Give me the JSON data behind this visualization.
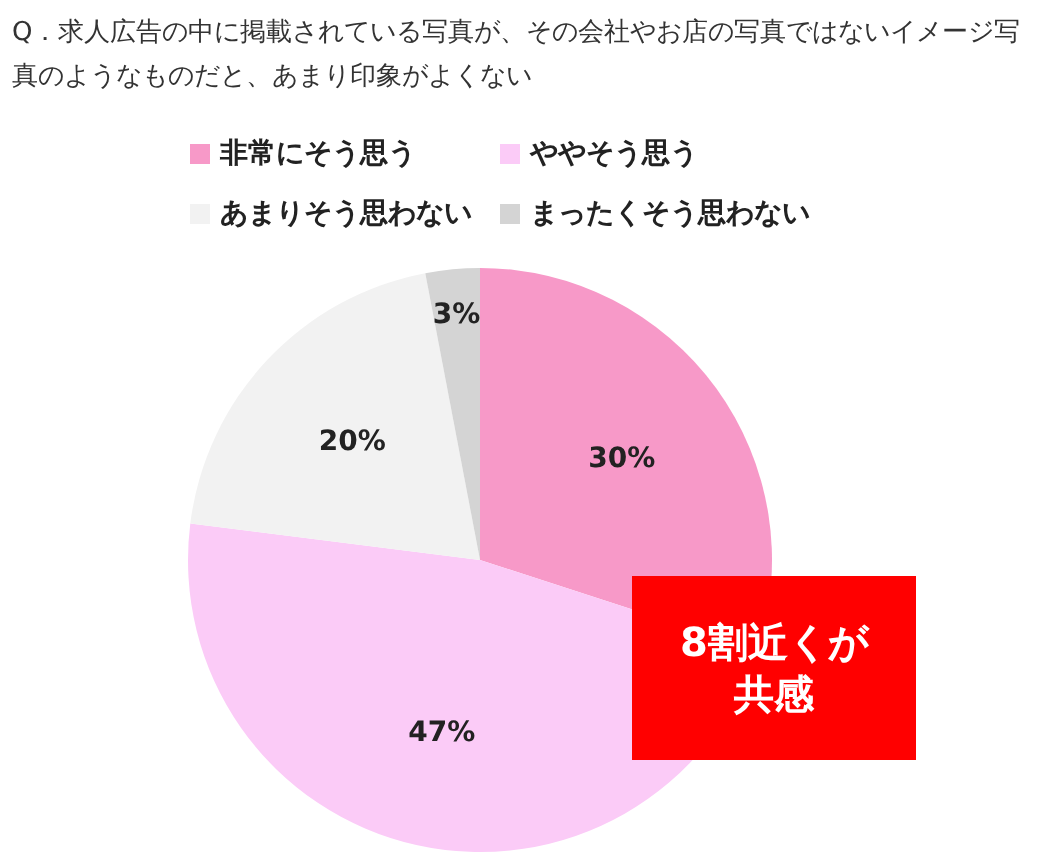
{
  "chart_data": {
    "type": "pie",
    "title": "Q．求人広告の中に掲載されている写真が、その会社やお店の写真ではないイメージ写真のようなものだと、あまり印象がよくない",
    "categories": [
      "非常にそう思う",
      "ややそう思う",
      "あまりそう思わない",
      "まったくそう思わない"
    ],
    "values": [
      30,
      47,
      20,
      3
    ],
    "colors": [
      "#f799c8",
      "#fbcbf7",
      "#f2f2f2",
      "#d4d4d4"
    ],
    "value_labels": [
      "30%",
      "47%",
      "20%",
      "3%"
    ],
    "legend": "top",
    "annotations": [
      "8割近くが共感"
    ]
  }
}
